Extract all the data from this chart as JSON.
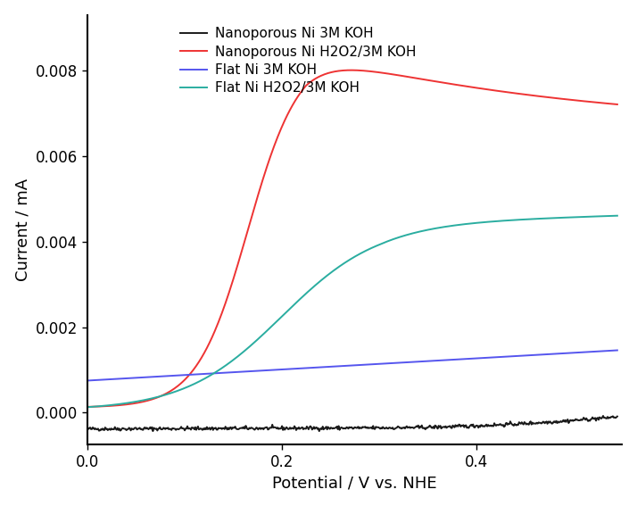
{
  "title": "",
  "xlabel": "Potential / V vs. NHE",
  "ylabel": "Current / mA",
  "xlim": [
    0.0,
    0.55
  ],
  "ylim": [
    -0.00075,
    0.0093
  ],
  "yticks": [
    0.0,
    0.002,
    0.004,
    0.006,
    0.008
  ],
  "xticks": [
    0.0,
    0.2,
    0.4
  ],
  "legend_entries": [
    "Nanoporous Ni 3M KOH",
    "Nanoporous Ni H2O2/3M KOH",
    "Flat Ni 3M KOH",
    "Flat Ni H2O2/3M KOH"
  ],
  "line_colors": [
    "#1a1a1a",
    "#ee3333",
    "#5555ee",
    "#2aada0"
  ],
  "background_color": "#ffffff",
  "font_size_labels": 13,
  "font_size_ticks": 12,
  "font_size_legend": 11
}
